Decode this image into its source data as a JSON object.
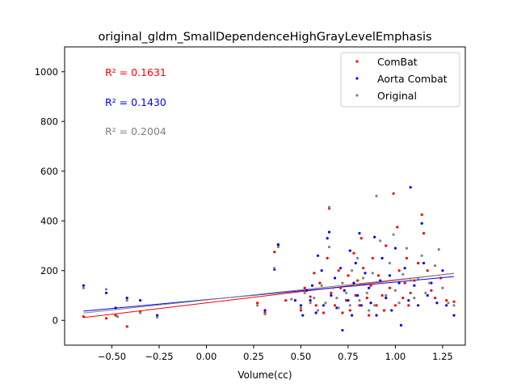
{
  "chart_data": {
    "type": "scatter",
    "title": "original_gldm_SmallDependenceHighGrayLevelEmphasis",
    "xlabel": "Volume(cc)",
    "ylabel": "",
    "xlim": [
      -0.75,
      1.37
    ],
    "ylim": [
      -100,
      1100
    ],
    "xticks": [
      -0.5,
      -0.25,
      0.0,
      0.25,
      0.5,
      0.75,
      1.0,
      1.25
    ],
    "xtick_labels": [
      "−0.50",
      "−0.25",
      "0.00",
      "0.25",
      "0.50",
      "0.75",
      "1.00",
      "1.25"
    ],
    "yticks": [
      0,
      200,
      400,
      600,
      800,
      1000
    ],
    "ytick_labels": [
      "0",
      "200",
      "400",
      "600",
      "800",
      "1000"
    ],
    "grid": false,
    "legend": {
      "placement": "top-right",
      "entries": [
        "ComBat",
        "Aorta Combat",
        "Original"
      ]
    },
    "annotations": [
      {
        "text": "R² = 0.1631",
        "color": "#ff0000"
      },
      {
        "text": "R² = 0.1430",
        "color": "#0000ff"
      },
      {
        "text": "R² = 0.2004",
        "color": "#808080"
      }
    ],
    "series": [
      {
        "name": "ComBat",
        "color": "#ff0000",
        "fit": {
          "intercept": 70,
          "slope": 91
        },
        "points": [
          [
            -0.65,
            15
          ],
          [
            -0.53,
            8
          ],
          [
            -0.48,
            20
          ],
          [
            -0.42,
            -25
          ],
          [
            -0.35,
            35
          ],
          [
            -0.26,
            18
          ],
          [
            0.27,
            70
          ],
          [
            0.31,
            30
          ],
          [
            0.36,
            275
          ],
          [
            0.38,
            300
          ],
          [
            0.42,
            80
          ],
          [
            0.5,
            40
          ],
          [
            0.52,
            130
          ],
          [
            0.55,
            95
          ],
          [
            0.57,
            190
          ],
          [
            0.58,
            60
          ],
          [
            0.6,
            150
          ],
          [
            0.62,
            30
          ],
          [
            0.64,
            250
          ],
          [
            0.65,
            450
          ],
          [
            0.66,
            110
          ],
          [
            0.68,
            60
          ],
          [
            0.7,
            200
          ],
          [
            0.71,
            130
          ],
          [
            0.72,
            30
          ],
          [
            0.74,
            80
          ],
          [
            0.75,
            180
          ],
          [
            0.76,
            40
          ],
          [
            0.78,
            270
          ],
          [
            0.79,
            100
          ],
          [
            0.8,
            160
          ],
          [
            0.81,
            60
          ],
          [
            0.82,
            330
          ],
          [
            0.83,
            210
          ],
          [
            0.85,
            90
          ],
          [
            0.86,
            20
          ],
          [
            0.87,
            140
          ],
          [
            0.88,
            250
          ],
          [
            0.9,
            60
          ],
          [
            0.91,
            180
          ],
          [
            0.93,
            100
          ],
          [
            0.94,
            40
          ],
          [
            0.95,
            300
          ],
          [
            0.97,
            130
          ],
          [
            0.99,
            510
          ],
          [
            1.0,
            60
          ],
          [
            1.01,
            375
          ],
          [
            1.02,
            200
          ],
          [
            1.04,
            90
          ],
          [
            1.05,
            150
          ],
          [
            1.06,
            250
          ],
          [
            1.07,
            60
          ],
          [
            1.08,
            110
          ],
          [
            1.1,
            160
          ],
          [
            1.12,
            230
          ],
          [
            1.14,
            425
          ],
          [
            1.15,
            350
          ],
          [
            1.17,
            200
          ],
          [
            1.19,
            120
          ],
          [
            1.21,
            90
          ],
          [
            1.24,
            170
          ],
          [
            1.27,
            80
          ],
          [
            1.31,
            75
          ]
        ]
      },
      {
        "name": "Aorta Combat",
        "color": "#0000ff",
        "fit": {
          "intercept": 83,
          "slope": 71
        },
        "points": [
          [
            -0.65,
            140
          ],
          [
            -0.53,
            110
          ],
          [
            -0.48,
            50
          ],
          [
            -0.42,
            90
          ],
          [
            -0.35,
            80
          ],
          [
            -0.26,
            20
          ],
          [
            0.31,
            40
          ],
          [
            0.36,
            205
          ],
          [
            0.38,
            305
          ],
          [
            0.47,
            80
          ],
          [
            0.5,
            60
          ],
          [
            0.51,
            20
          ],
          [
            0.53,
            120
          ],
          [
            0.55,
            80
          ],
          [
            0.56,
            140
          ],
          [
            0.58,
            30
          ],
          [
            0.59,
            260
          ],
          [
            0.61,
            200
          ],
          [
            0.62,
            60
          ],
          [
            0.64,
            330
          ],
          [
            0.65,
            355
          ],
          [
            0.66,
            100
          ],
          [
            0.68,
            170
          ],
          [
            0.69,
            50
          ],
          [
            0.71,
            210
          ],
          [
            0.72,
            -40
          ],
          [
            0.73,
            120
          ],
          [
            0.75,
            80
          ],
          [
            0.76,
            280
          ],
          [
            0.77,
            20
          ],
          [
            0.78,
            150
          ],
          [
            0.79,
            230
          ],
          [
            0.8,
            100
          ],
          [
            0.81,
            350
          ],
          [
            0.82,
            60
          ],
          [
            0.84,
            190
          ],
          [
            0.86,
            130
          ],
          [
            0.87,
            70
          ],
          [
            0.89,
            335
          ],
          [
            0.9,
            20
          ],
          [
            0.92,
            160
          ],
          [
            0.93,
            250
          ],
          [
            0.95,
            90
          ],
          [
            0.97,
            180
          ],
          [
            0.98,
            40
          ],
          [
            1.0,
            290
          ],
          [
            1.02,
            150
          ],
          [
            1.03,
            -20
          ],
          [
            1.05,
            210
          ],
          [
            1.07,
            80
          ],
          [
            1.08,
            535
          ],
          [
            1.1,
            140
          ],
          [
            1.12,
            60
          ],
          [
            1.14,
            390
          ],
          [
            1.15,
            230
          ],
          [
            1.17,
            100
          ],
          [
            1.19,
            150
          ],
          [
            1.22,
            70
          ],
          [
            1.25,
            200
          ],
          [
            1.27,
            60
          ],
          [
            1.31,
            20
          ]
        ]
      },
      {
        "name": "Original",
        "color": "#808080",
        "fit": {
          "intercept": 82,
          "slope": 81
        },
        "points": [
          [
            -0.65,
            130
          ],
          [
            -0.53,
            125
          ],
          [
            -0.47,
            15
          ],
          [
            -0.42,
            80
          ],
          [
            -0.35,
            30
          ],
          [
            -0.26,
            12
          ],
          [
            0.27,
            60
          ],
          [
            0.31,
            25
          ],
          [
            0.36,
            210
          ],
          [
            0.38,
            295
          ],
          [
            0.45,
            85
          ],
          [
            0.5,
            50
          ],
          [
            0.52,
            110
          ],
          [
            0.55,
            70
          ],
          [
            0.57,
            90
          ],
          [
            0.59,
            40
          ],
          [
            0.61,
            140
          ],
          [
            0.63,
            70
          ],
          [
            0.65,
            295
          ],
          [
            0.65,
            455
          ],
          [
            0.67,
            130
          ],
          [
            0.69,
            90
          ],
          [
            0.7,
            50
          ],
          [
            0.72,
            150
          ],
          [
            0.74,
            110
          ],
          [
            0.76,
            60
          ],
          [
            0.77,
            200
          ],
          [
            0.79,
            140
          ],
          [
            0.8,
            250
          ],
          [
            0.81,
            80
          ],
          [
            0.83,
            170
          ],
          [
            0.85,
            110
          ],
          [
            0.86,
            40
          ],
          [
            0.88,
            190
          ],
          [
            0.89,
            60
          ],
          [
            0.9,
            500
          ],
          [
            0.92,
            320
          ],
          [
            0.93,
            150
          ],
          [
            0.95,
            100
          ],
          [
            0.97,
            230
          ],
          [
            0.99,
            345
          ],
          [
            1.0,
            120
          ],
          [
            1.02,
            70
          ],
          [
            1.04,
            185
          ],
          [
            1.06,
            290
          ],
          [
            1.08,
            160
          ],
          [
            1.1,
            90
          ],
          [
            1.12,
            170
          ],
          [
            1.14,
            260
          ],
          [
            1.16,
            110
          ],
          [
            1.18,
            150
          ],
          [
            1.21,
            220
          ],
          [
            1.23,
            285
          ],
          [
            1.25,
            130
          ],
          [
            1.28,
            70
          ],
          [
            1.31,
            60
          ]
        ]
      }
    ]
  }
}
